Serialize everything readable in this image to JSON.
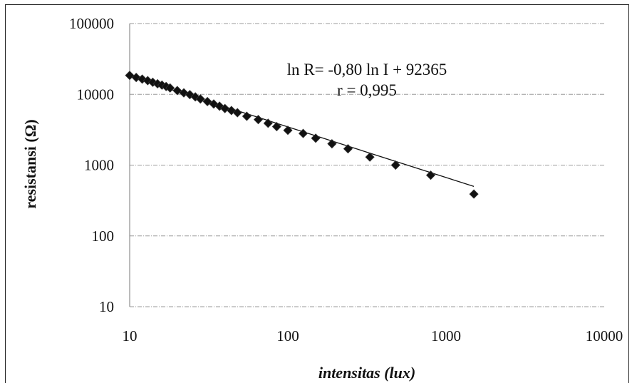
{
  "chart_data": {
    "type": "scatter",
    "title": "",
    "xlabel": "intensitas (lux)",
    "ylabel": "resistansi (Ω)",
    "x_scale": "log",
    "y_scale": "log",
    "xlim": [
      10,
      10000
    ],
    "ylim": [
      10,
      100000
    ],
    "x_ticks": [
      "10",
      "100",
      "1000",
      "10000"
    ],
    "y_ticks": [
      "10",
      "100",
      "1000",
      "10000",
      "100000"
    ],
    "grid": "horizontal",
    "annotations": [
      "ln R= -0,80 ln I + 92365",
      "r = 0,995"
    ],
    "series": [
      {
        "marker": "diamond",
        "color": "#111111",
        "x": [
          10,
          11,
          12,
          13,
          14,
          15,
          16,
          17,
          18,
          20,
          22,
          24,
          26,
          28,
          31,
          34,
          37,
          40,
          44,
          48,
          55,
          65,
          75,
          85,
          100,
          125,
          150,
          190,
          240,
          330,
          480,
          800,
          1500
        ],
        "y": [
          18500,
          17300,
          16400,
          15600,
          14800,
          14100,
          13500,
          12900,
          12300,
          11300,
          10500,
          9900,
          9200,
          8600,
          7900,
          7300,
          6800,
          6300,
          5900,
          5500,
          4900,
          4400,
          3900,
          3500,
          3100,
          2800,
          2400,
          2000,
          1700,
          1300,
          1000,
          720,
          390
        ]
      }
    ],
    "trendline": {
      "x": [
        10,
        1500
      ],
      "y": [
        18000,
        500
      ]
    }
  }
}
